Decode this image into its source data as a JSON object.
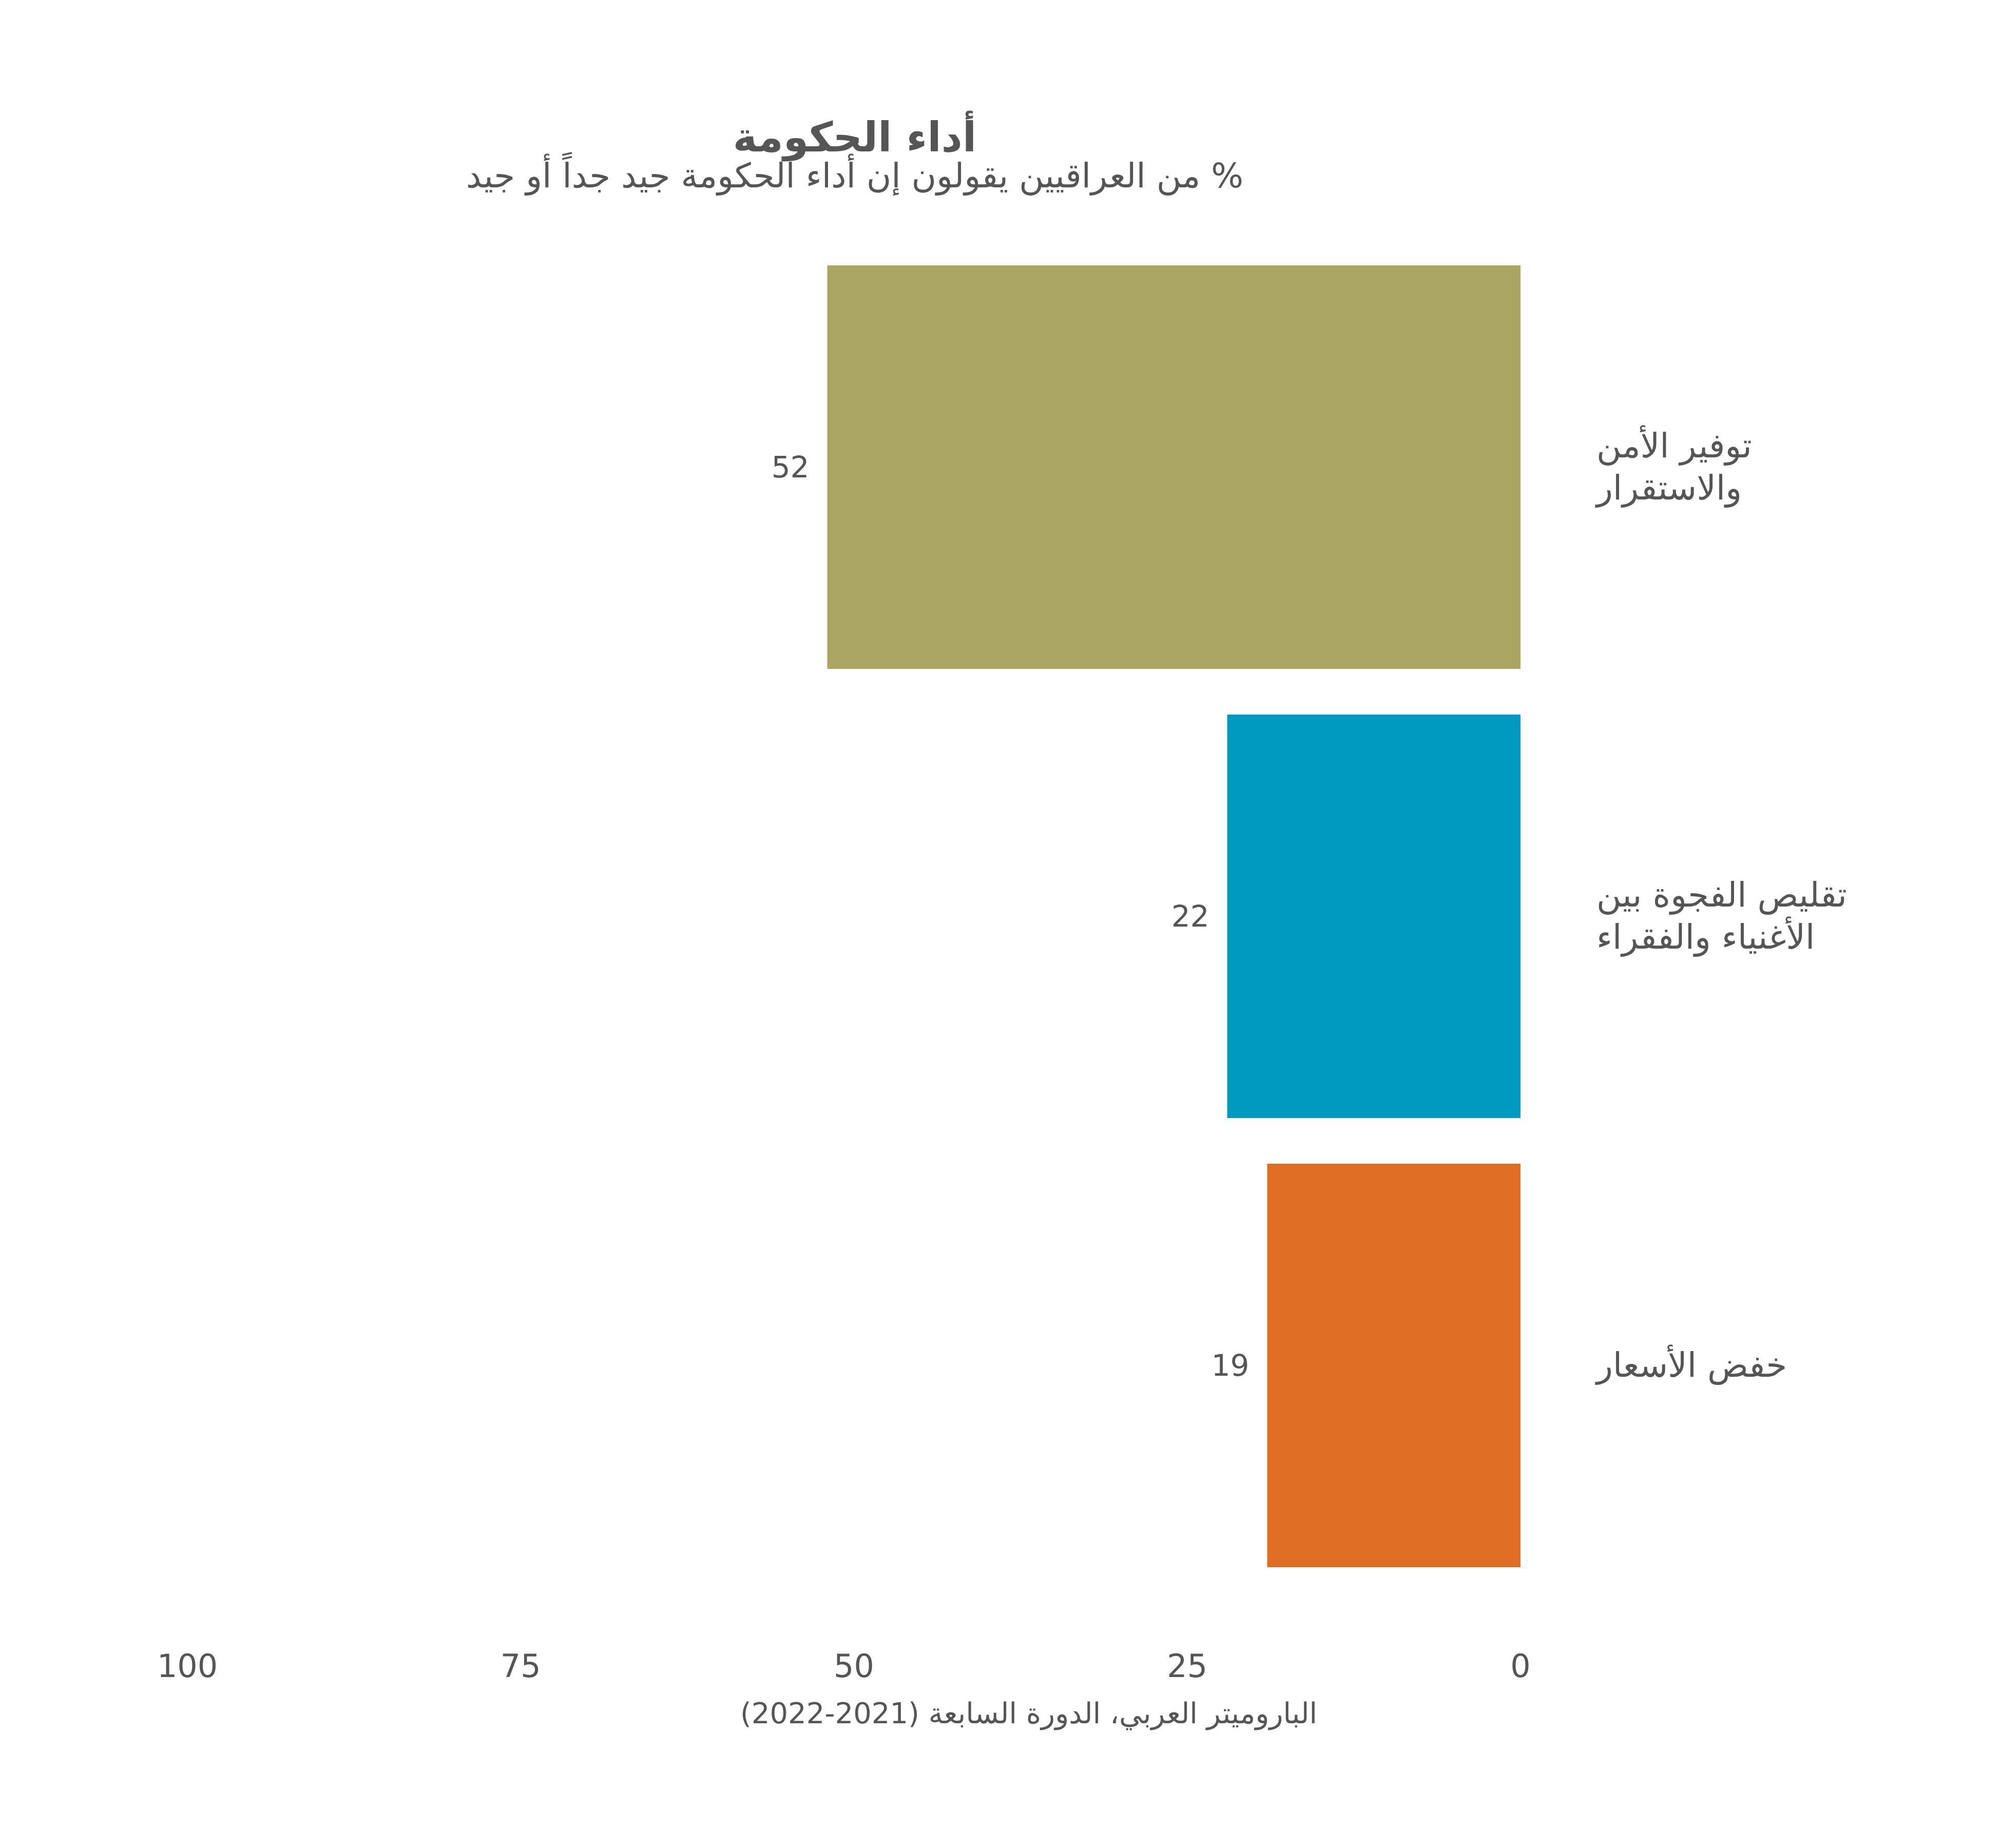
{
  "chart_data": {
    "type": "bar",
    "orientation": "horizontal",
    "title": "أداء الحكومة",
    "subtitle": "% من العراقيين يقولون إن أداء الحكومة جيد جداً أو جيد",
    "categories": [
      [
        "توفير الأمن",
        "والاستقرار"
      ],
      [
        "تقليص الفجوة بين",
        "الأغنياء والفقراء"
      ],
      [
        "خفض الأسعار"
      ]
    ],
    "values": [
      52,
      22,
      19
    ],
    "value_labels": [
      "52",
      "22",
      "19"
    ],
    "colors": [
      "#aaa662",
      "#0099c0",
      "#df6d22"
    ],
    "xlim": [
      0,
      100
    ],
    "x_reversed": true,
    "x_ticks": [
      0,
      25,
      50,
      75,
      100
    ],
    "x_tick_labels": [
      "0",
      "25",
      "50",
      "75",
      "100"
    ],
    "grid": false,
    "legend": "none",
    "source": "الباروميتر العربي، الدورة السابعة (2021-2022)"
  }
}
